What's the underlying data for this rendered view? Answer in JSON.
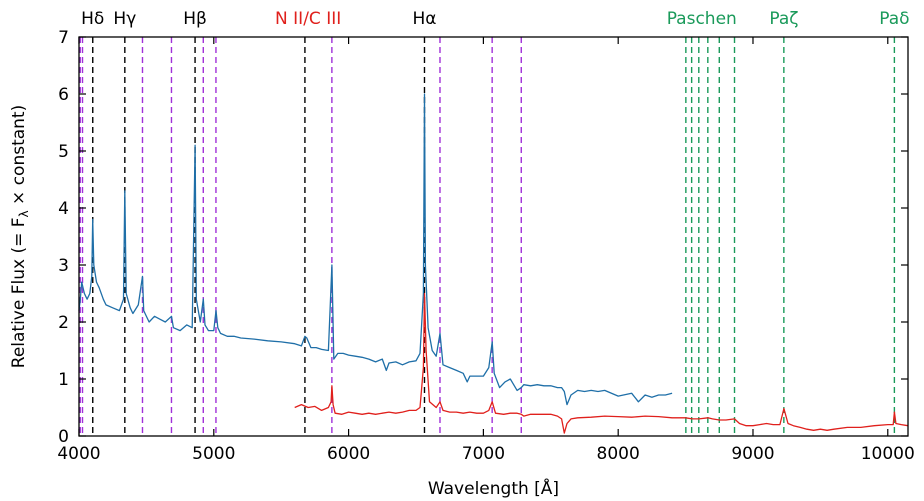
{
  "chart_data": {
    "type": "line",
    "xlabel": "Wavelength [Å]",
    "ylabel_main": "Relative Flux (= F",
    "ylabel_sub": "λ",
    "ylabel_tail": " × constant)",
    "xlim": [
      4000,
      10150
    ],
    "ylim": [
      0,
      7
    ],
    "xticks": [
      4000,
      5000,
      6000,
      7000,
      8000,
      9000,
      10000
    ],
    "yticks": [
      0,
      1,
      2,
      3,
      4,
      5,
      6,
      7
    ],
    "grid": false,
    "colors": {
      "series_blue": "#1f6fa8",
      "series_red": "#e0201c",
      "balmer_lines": "#000000",
      "he_lines": "#a030d8",
      "paschen_lines": "#1a9a5a",
      "nii_label": "#e0201c"
    },
    "line_labels": [
      {
        "text": "Hδ",
        "x": 4102,
        "color": "#000000"
      },
      {
        "text": "Hγ",
        "x": 4340,
        "color": "#000000"
      },
      {
        "text": "Hβ",
        "x": 4861,
        "color": "#000000"
      },
      {
        "text": "N II/C III",
        "x": 5700,
        "color": "#e0201c"
      },
      {
        "text": "Hα",
        "x": 6563,
        "color": "#000000"
      },
      {
        "text": "Paschen",
        "x": 8620,
        "color": "#1a9a5a"
      },
      {
        "text": "Paζ",
        "x": 9230,
        "color": "#1a9a5a"
      },
      {
        "text": "Paδ",
        "x": 10049,
        "color": "#1a9a5a"
      }
    ],
    "vlines": {
      "balmer": [
        4102,
        4340,
        4861,
        5676,
        6563
      ],
      "helium": [
        4009,
        4026,
        4471,
        4686,
        4922,
        5016,
        5876,
        6678,
        7065,
        7281
      ],
      "paschen": [
        8502,
        8545,
        8598,
        8665,
        8750,
        8863,
        9229,
        10049
      ]
    },
    "series": [
      {
        "x": [
          4000,
          4010,
          4020,
          4040,
          4060,
          4080,
          4095,
          4102,
          4110,
          4130,
          4150,
          4180,
          4200,
          4250,
          4300,
          4330,
          4340,
          4350,
          4380,
          4400,
          4440,
          4471,
          4480,
          4520,
          4560,
          4600,
          4640,
          4686,
          4700,
          4750,
          4800,
          4840,
          4861,
          4870,
          4900,
          4922,
          4935,
          4960,
          5000,
          5016,
          5030,
          5050,
          5100,
          5150,
          5200,
          5300,
          5400,
          5500,
          5600,
          5650,
          5676,
          5690,
          5720,
          5760,
          5800,
          5850,
          5876,
          5890,
          5920,
          5960,
          6000,
          6050,
          6100,
          6150,
          6200,
          6250,
          6280,
          6300,
          6350,
          6400,
          6450,
          6500,
          6530,
          6555,
          6563,
          6570,
          6590,
          6620,
          6650,
          6678,
          6700,
          6750,
          6800,
          6850,
          6880,
          6900,
          6950,
          7000,
          7040,
          7065,
          7080,
          7120,
          7160,
          7200,
          7250,
          7281,
          7300,
          7350,
          7400,
          7450,
          7500,
          7550,
          7580,
          7600,
          7620,
          7650,
          7700,
          7750,
          7800,
          7850,
          7900,
          8000,
          8100,
          8150,
          8200,
          8250,
          8300,
          8350,
          8400
        ],
        "y": [
          2.2,
          2.4,
          2.7,
          2.5,
          2.4,
          2.5,
          2.8,
          3.8,
          3.0,
          2.7,
          2.6,
          2.4,
          2.3,
          2.25,
          2.2,
          2.4,
          4.3,
          2.5,
          2.25,
          2.15,
          2.3,
          2.8,
          2.2,
          2.0,
          2.1,
          2.05,
          2.0,
          2.1,
          1.9,
          1.85,
          1.95,
          1.9,
          5.1,
          2.4,
          2.0,
          2.4,
          1.95,
          1.85,
          1.85,
          2.2,
          1.9,
          1.8,
          1.75,
          1.75,
          1.72,
          1.7,
          1.67,
          1.65,
          1.62,
          1.58,
          1.75,
          1.72,
          1.55,
          1.55,
          1.52,
          1.5,
          3.0,
          1.35,
          1.45,
          1.45,
          1.42,
          1.4,
          1.38,
          1.35,
          1.3,
          1.35,
          1.15,
          1.28,
          1.3,
          1.25,
          1.3,
          1.32,
          1.45,
          2.5,
          6.0,
          3.0,
          1.9,
          1.5,
          1.4,
          1.8,
          1.25,
          1.2,
          1.15,
          1.1,
          0.95,
          1.05,
          1.05,
          1.05,
          1.2,
          1.65,
          1.1,
          0.85,
          0.95,
          1.0,
          0.8,
          0.85,
          0.9,
          0.88,
          0.9,
          0.88,
          0.88,
          0.85,
          0.85,
          0.78,
          0.55,
          0.72,
          0.8,
          0.78,
          0.8,
          0.78,
          0.8,
          0.7,
          0.75,
          0.6,
          0.72,
          0.68,
          0.72,
          0.72,
          0.75
        ]
      },
      {
        "x": [
          5600,
          5650,
          5700,
          5750,
          5800,
          5850,
          5870,
          5876,
          5885,
          5900,
          5950,
          6000,
          6050,
          6100,
          6150,
          6200,
          6250,
          6300,
          6350,
          6400,
          6450,
          6500,
          6530,
          6555,
          6563,
          6575,
          6600,
          6650,
          6678,
          6700,
          6750,
          6800,
          6850,
          6900,
          6950,
          7000,
          7040,
          7065,
          7090,
          7150,
          7200,
          7250,
          7281,
          7300,
          7350,
          7400,
          7450,
          7500,
          7550,
          7580,
          7600,
          7620,
          7650,
          7700,
          7800,
          7900,
          8000,
          8100,
          8200,
          8300,
          8400,
          8500,
          8550,
          8600,
          8665,
          8700,
          8750,
          8800,
          8863,
          8900,
          8950,
          9000,
          9050,
          9100,
          9150,
          9200,
          9229,
          9260,
          9300,
          9350,
          9400,
          9450,
          9500,
          9550,
          9600,
          9700,
          9800,
          9900,
          10000,
          10040,
          10049,
          10060,
          10100,
          10150
        ],
        "y": [
          0.5,
          0.55,
          0.5,
          0.52,
          0.45,
          0.5,
          0.6,
          0.88,
          0.55,
          0.4,
          0.38,
          0.42,
          0.4,
          0.38,
          0.4,
          0.38,
          0.4,
          0.42,
          0.4,
          0.42,
          0.45,
          0.45,
          0.5,
          1.2,
          2.5,
          1.5,
          0.6,
          0.5,
          0.6,
          0.45,
          0.42,
          0.42,
          0.4,
          0.42,
          0.4,
          0.4,
          0.45,
          0.6,
          0.4,
          0.38,
          0.4,
          0.4,
          0.38,
          0.35,
          0.38,
          0.38,
          0.38,
          0.38,
          0.35,
          0.3,
          0.05,
          0.22,
          0.3,
          0.32,
          0.33,
          0.35,
          0.34,
          0.33,
          0.35,
          0.34,
          0.32,
          0.32,
          0.3,
          0.3,
          0.32,
          0.3,
          0.28,
          0.28,
          0.3,
          0.22,
          0.18,
          0.18,
          0.2,
          0.22,
          0.2,
          0.2,
          0.48,
          0.22,
          0.18,
          0.15,
          0.12,
          0.1,
          0.12,
          0.1,
          0.12,
          0.15,
          0.15,
          0.18,
          0.2,
          0.2,
          0.42,
          0.22,
          0.2,
          0.18
        ]
      }
    ]
  }
}
